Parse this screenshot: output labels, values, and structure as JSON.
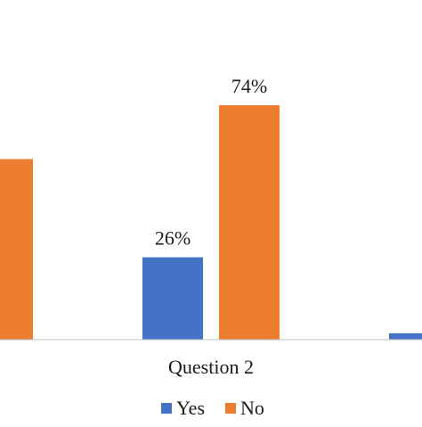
{
  "chart_data": {
    "type": "bar",
    "categories": [
      "",
      "Question 2",
      ""
    ],
    "series": [
      {
        "name": "Yes",
        "color": "#4472C4",
        "values": [
          null,
          26,
          2
        ],
        "data_labels": [
          "",
          "26%",
          ""
        ]
      },
      {
        "name": "No",
        "color": "#ED7D31",
        "values": [
          57,
          74,
          null
        ],
        "data_labels": [
          "",
          "74%",
          ""
        ]
      }
    ],
    "ylim": [
      0,
      100
    ],
    "grid": false,
    "legend": "bottom",
    "axis_color": "#bfbfbf"
  }
}
